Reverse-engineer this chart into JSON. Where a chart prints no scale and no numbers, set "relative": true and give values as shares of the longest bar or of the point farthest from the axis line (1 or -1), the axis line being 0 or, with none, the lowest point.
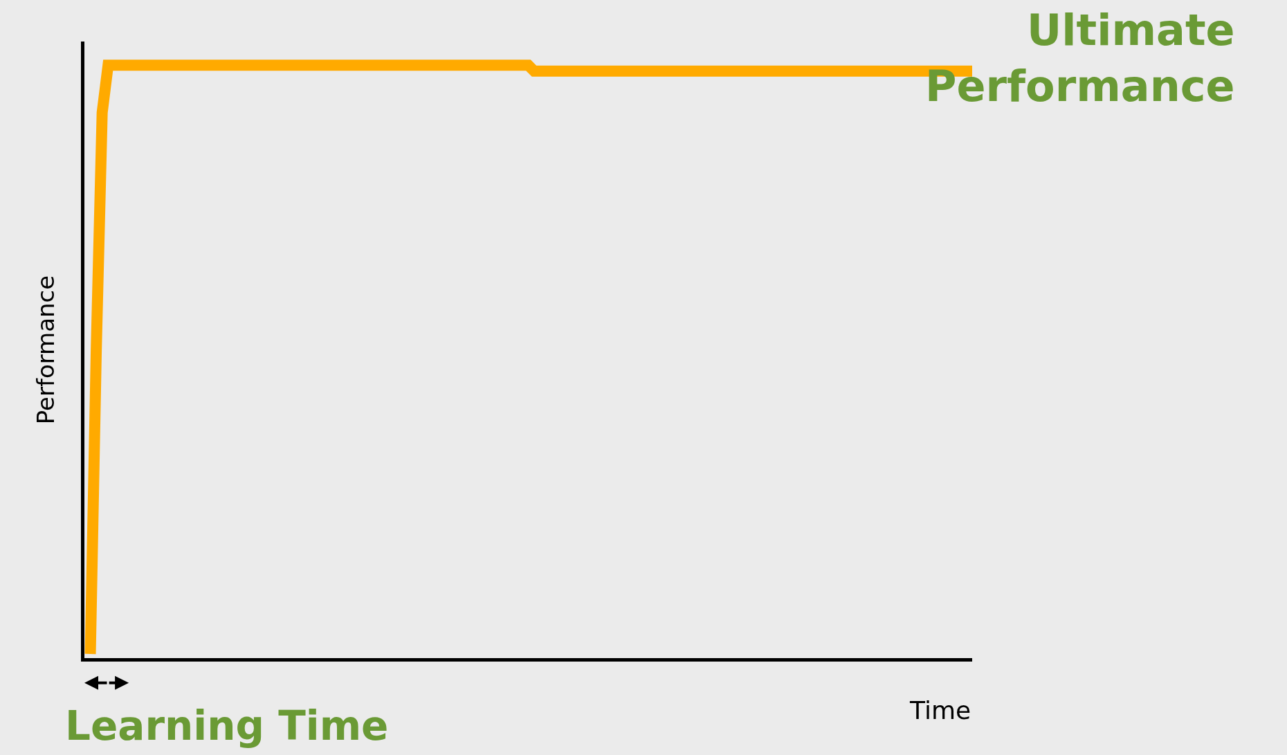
{
  "chart_data": {
    "type": "line",
    "relative": true,
    "xlabel": "Time",
    "ylabel": "Performance",
    "categories": [
      null,
      null,
      null,
      null,
      null,
      null,
      null,
      null,
      null,
      null,
      null,
      null,
      null,
      null,
      null,
      null,
      null,
      null,
      null,
      null,
      null,
      null,
      null,
      null,
      null,
      null,
      null,
      null,
      null,
      null,
      null,
      null,
      null,
      null,
      null,
      null,
      null,
      null,
      null,
      null,
      null,
      null,
      null,
      null,
      null,
      null,
      null,
      null,
      null,
      null,
      null,
      null,
      null,
      null,
      null,
      null,
      null,
      null,
      null,
      null,
      null,
      null,
      null,
      null,
      null,
      null,
      null,
      null,
      null,
      null,
      null,
      null,
      null,
      null,
      null,
      null,
      null,
      null,
      null,
      null,
      null,
      null,
      null,
      null,
      null,
      null,
      null,
      null,
      null,
      null,
      null,
      null,
      null,
      null,
      null,
      null,
      null,
      null,
      null,
      null,
      null,
      null,
      null,
      null,
      null,
      null,
      null,
      null,
      null,
      null,
      null,
      null,
      null,
      null,
      null,
      null,
      null,
      null,
      null,
      null,
      null,
      null,
      null,
      null,
      null,
      null,
      null,
      null,
      null,
      null,
      null,
      null,
      null,
      null,
      null,
      null,
      null,
      null,
      null,
      null,
      null,
      null,
      null,
      null,
      null,
      null,
      null,
      null,
      null,
      null
    ],
    "series": [
      {
        "color": "#ffaa00",
        "values": [
          0.007,
          0.52,
          0.92,
          1.0,
          1.0,
          1.0,
          1.0,
          1.0,
          1.0,
          1.0,
          1.0,
          1.0,
          1.0,
          1.0,
          1.0,
          1.0,
          1.0,
          1.0,
          1.0,
          1.0,
          1.0,
          1.0,
          1.0,
          1.0,
          1.0,
          1.0,
          1.0,
          1.0,
          1.0,
          1.0,
          1.0,
          1.0,
          1.0,
          1.0,
          1.0,
          1.0,
          1.0,
          1.0,
          1.0,
          1.0,
          1.0,
          1.0,
          1.0,
          1.0,
          1.0,
          1.0,
          1.0,
          1.0,
          1.0,
          1.0,
          1.0,
          1.0,
          1.0,
          1.0,
          1.0,
          1.0,
          1.0,
          1.0,
          1.0,
          1.0,
          1.0,
          1.0,
          1.0,
          1.0,
          1.0,
          1.0,
          1.0,
          1.0,
          1.0,
          1.0,
          1.0,
          1.0,
          1.0,
          1.0,
          1.0,
          0.99,
          0.99,
          0.99,
          0.99,
          0.99,
          0.99,
          0.99,
          0.99,
          0.99,
          0.99,
          0.99,
          0.99,
          0.99,
          0.99,
          0.99,
          0.99,
          0.99,
          0.99,
          0.99,
          0.99,
          0.99,
          0.99,
          0.99,
          0.99,
          0.99,
          0.99,
          0.99,
          0.99,
          0.99,
          0.99,
          0.99,
          0.99,
          0.99,
          0.99,
          0.99,
          0.99,
          0.99,
          0.99,
          0.99,
          0.99,
          0.99,
          0.99,
          0.99,
          0.99,
          0.99,
          0.99,
          0.99,
          0.99,
          0.99,
          0.99,
          0.99,
          0.99,
          0.99,
          0.99,
          0.99,
          0.99,
          0.99,
          0.99,
          0.99,
          0.99,
          0.99,
          0.99,
          0.99,
          0.99,
          0.99,
          0.99,
          0.99,
          0.99,
          0.99,
          0.99,
          0.99,
          0.99,
          0.99,
          0.99,
          0.99
        ]
      }
    ],
    "annotations": [
      "Ultimate Performance",
      "Learning Time"
    ],
    "grid": false,
    "marker": "none",
    "line_style": "solid"
  }
}
